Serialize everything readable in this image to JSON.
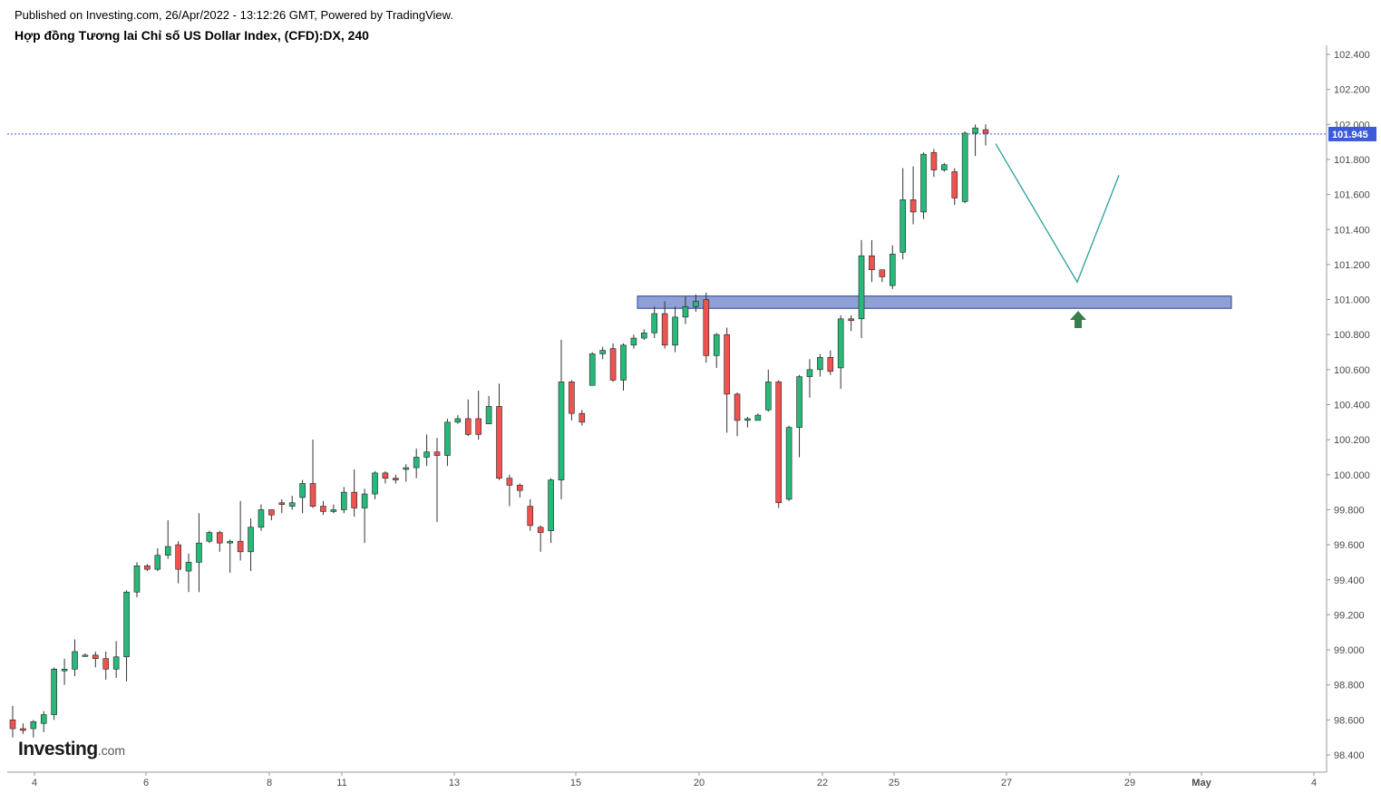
{
  "header": {
    "publisher": "Published on Investing.com, 26/Apr/2022 - 13:12:26 GMT, Powered by TradingView.",
    "title": "Hợp đồng Tương lai Chỉ số US Dollar Index, (CFD):DX, 240"
  },
  "logo": {
    "main": "Investing",
    "suffix": ".com"
  },
  "colors": {
    "up": "#26b97a",
    "down": "#ef5350",
    "wick": "#333333",
    "zone_fill": "#7b8fce",
    "zone_stroke": "#2c3f9e",
    "projection": "#2aa198",
    "arrow": "#3a7d4f",
    "price_line": "#3b5bdb",
    "price_badge": "#3b5bdb"
  },
  "chart_data": {
    "type": "candlestick",
    "title": "Hợp đồng Tương lai Chỉ số US Dollar Index, (CFD):DX, 240",
    "ylim": [
      98.3,
      102.45
    ],
    "y_ticks": [
      "102.400",
      "102.200",
      "102.000",
      "101.800",
      "101.600",
      "101.400",
      "101.200",
      "101.000",
      "100.800",
      "100.600",
      "100.400",
      "100.200",
      "100.000",
      "99.800",
      "99.600",
      "99.400",
      "99.200",
      "99.000",
      "98.800",
      "98.600",
      "98.400"
    ],
    "x_ticks": [
      "4",
      "6",
      "8",
      "11",
      "13",
      "15",
      "20",
      "22",
      "25",
      "27",
      "29",
      "May",
      "4"
    ],
    "last_price": "101.945",
    "candles": [
      [
        98.6,
        98.55,
        98.68,
        98.5
      ],
      [
        98.55,
        98.54,
        98.58,
        98.52
      ],
      [
        98.55,
        98.59,
        98.6,
        98.5
      ],
      [
        98.58,
        98.63,
        98.65,
        98.53
      ],
      [
        98.63,
        98.89,
        98.9,
        98.6
      ],
      [
        98.88,
        98.89,
        98.95,
        98.8
      ],
      [
        98.89,
        98.99,
        99.06,
        98.85
      ],
      [
        98.97,
        98.97,
        98.98,
        98.96
      ],
      [
        98.97,
        98.95,
        98.99,
        98.9
      ],
      [
        98.95,
        98.89,
        98.99,
        98.83
      ],
      [
        98.89,
        98.96,
        99.05,
        98.84
      ],
      [
        98.96,
        99.33,
        99.34,
        98.82
      ],
      [
        99.33,
        99.48,
        99.5,
        99.3
      ],
      [
        99.48,
        99.46,
        99.49,
        99.45
      ],
      [
        99.46,
        99.54,
        99.58,
        99.45
      ],
      [
        99.54,
        99.59,
        99.74,
        99.52
      ],
      [
        99.6,
        99.46,
        99.62,
        99.38
      ],
      [
        99.45,
        99.5,
        99.55,
        99.33
      ],
      [
        99.5,
        99.61,
        99.78,
        99.33
      ],
      [
        99.62,
        99.67,
        99.68,
        99.61
      ],
      [
        99.67,
        99.61,
        99.68,
        99.56
      ],
      [
        99.61,
        99.62,
        99.63,
        99.44
      ],
      [
        99.62,
        99.56,
        99.85,
        99.51
      ],
      [
        99.56,
        99.7,
        99.75,
        99.45
      ],
      [
        99.7,
        99.8,
        99.83,
        99.68
      ],
      [
        99.8,
        99.77,
        99.8,
        99.74
      ],
      [
        99.84,
        99.83,
        99.86,
        99.78
      ],
      [
        99.82,
        99.84,
        99.88,
        99.8
      ],
      [
        99.87,
        99.95,
        99.97,
        99.78
      ],
      [
        99.95,
        99.82,
        100.2,
        99.81
      ],
      [
        99.82,
        99.79,
        99.85,
        99.77
      ],
      [
        99.79,
        99.8,
        99.83,
        99.78
      ],
      [
        99.8,
        99.9,
        99.93,
        99.78
      ],
      [
        99.9,
        99.81,
        100.03,
        99.76
      ],
      [
        99.81,
        99.89,
        99.92,
        99.61
      ],
      [
        99.89,
        100.01,
        100.02,
        99.86
      ],
      [
        100.01,
        99.98,
        100.02,
        99.95
      ],
      [
        99.98,
        99.97,
        100.0,
        99.95
      ],
      [
        100.03,
        100.04,
        100.06,
        99.96
      ],
      [
        100.04,
        100.1,
        100.15,
        99.98
      ],
      [
        100.1,
        100.13,
        100.23,
        100.05
      ],
      [
        100.13,
        100.11,
        100.21,
        99.73
      ],
      [
        100.11,
        100.3,
        100.32,
        100.05
      ],
      [
        100.3,
        100.32,
        100.34,
        100.29
      ],
      [
        100.32,
        100.23,
        100.43,
        100.22
      ],
      [
        100.32,
        100.23,
        100.48,
        100.2
      ],
      [
        100.29,
        100.39,
        100.45,
        100.29
      ],
      [
        100.39,
        99.98,
        100.52,
        99.97
      ],
      [
        99.98,
        99.94,
        100.0,
        99.82
      ],
      [
        99.94,
        99.91,
        99.95,
        99.87
      ],
      [
        99.82,
        99.71,
        99.86,
        99.68
      ],
      [
        99.7,
        99.67,
        99.71,
        99.56
      ],
      [
        99.68,
        99.97,
        99.98,
        99.61
      ],
      [
        99.97,
        100.53,
        100.77,
        99.86
      ],
      [
        100.53,
        100.35,
        100.54,
        100.31
      ],
      [
        100.35,
        100.3,
        100.37,
        100.28
      ],
      [
        100.51,
        100.69,
        100.7,
        100.51
      ],
      [
        100.69,
        100.71,
        100.73,
        100.66
      ],
      [
        100.72,
        100.54,
        100.75,
        100.53
      ],
      [
        100.54,
        100.74,
        100.75,
        100.48
      ],
      [
        100.74,
        100.78,
        100.8,
        100.72
      ],
      [
        100.78,
        100.81,
        100.83,
        100.77
      ],
      [
        100.81,
        100.92,
        100.96,
        100.78
      ],
      [
        100.92,
        100.74,
        100.99,
        100.72
      ],
      [
        100.74,
        100.9,
        100.96,
        100.7
      ],
      [
        100.9,
        100.96,
        101.02,
        100.86
      ],
      [
        100.96,
        100.99,
        101.03,
        100.93
      ],
      [
        101.0,
        100.68,
        101.04,
        100.64
      ],
      [
        100.68,
        100.8,
        100.81,
        100.61
      ],
      [
        100.8,
        100.46,
        100.84,
        100.24
      ],
      [
        100.46,
        100.31,
        100.47,
        100.22
      ],
      [
        100.31,
        100.32,
        100.33,
        100.27
      ],
      [
        100.31,
        100.34,
        100.35,
        100.31
      ],
      [
        100.37,
        100.53,
        100.6,
        100.36
      ],
      [
        100.53,
        99.84,
        100.54,
        99.81
      ],
      [
        99.86,
        100.27,
        100.28,
        99.85
      ],
      [
        100.27,
        100.56,
        100.57,
        100.1
      ],
      [
        100.56,
        100.6,
        100.66,
        100.44
      ],
      [
        100.6,
        100.67,
        100.69,
        100.56
      ],
      [
        100.67,
        100.59,
        100.71,
        100.57
      ],
      [
        100.61,
        100.89,
        100.91,
        100.49
      ],
      [
        100.89,
        100.88,
        100.91,
        100.82
      ],
      [
        100.89,
        101.25,
        101.34,
        100.78
      ],
      [
        101.25,
        101.17,
        101.34,
        101.1
      ],
      [
        101.17,
        101.13,
        101.15,
        101.1
      ],
      [
        101.08,
        101.26,
        101.31,
        101.06
      ],
      [
        101.27,
        101.57,
        101.75,
        101.23
      ],
      [
        101.57,
        101.5,
        101.76,
        101.43
      ],
      [
        101.5,
        101.83,
        101.84,
        101.46
      ],
      [
        101.84,
        101.74,
        101.86,
        101.7
      ],
      [
        101.74,
        101.77,
        101.78,
        101.73
      ],
      [
        101.73,
        101.58,
        101.75,
        101.54
      ],
      [
        101.56,
        101.95,
        101.96,
        101.55
      ],
      [
        101.95,
        101.98,
        102.0,
        101.82
      ],
      [
        101.97,
        101.95,
        102.0,
        101.88
      ]
    ],
    "support_zone": {
      "x_start": 703,
      "x_end": 1358,
      "top": 101.02,
      "bottom": 100.95
    },
    "projection_path": [
      [
        1098,
        101.89
      ],
      [
        1188,
        101.1
      ],
      [
        1234,
        101.71
      ]
    ],
    "grid": false,
    "legend": "none"
  }
}
